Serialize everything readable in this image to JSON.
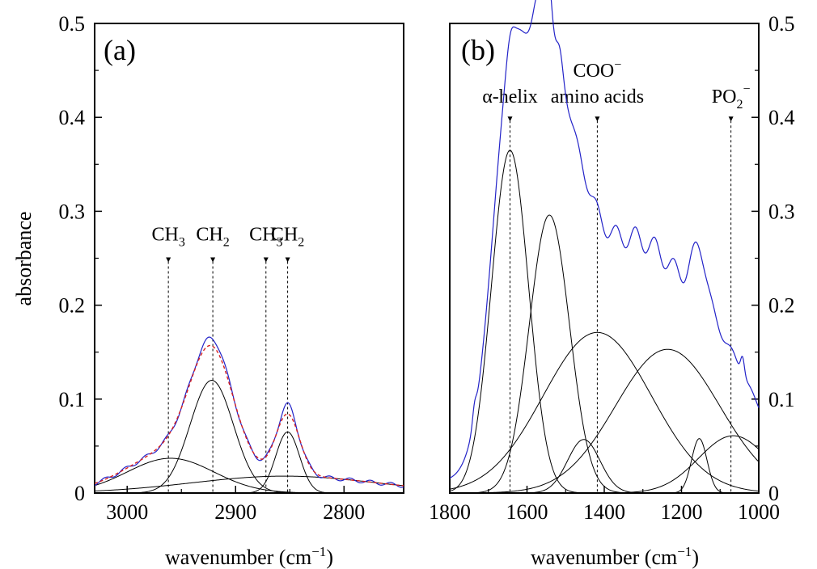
{
  "chart_data": [
    {
      "panel": "(a)",
      "type": "line",
      "xlabel": "wavenumber (cm",
      "xlabel_sup": "−1",
      "xlabel_end": ")",
      "ylabel": "absorbance",
      "xlim": [
        3030,
        2745
      ],
      "ylim": [
        0,
        0.5
      ],
      "xticks": [
        3000,
        2900,
        2800
      ],
      "yticks": [
        0,
        0.1,
        0.2,
        0.3,
        0.4,
        0.5
      ],
      "ytick_labels": [
        "0",
        "0.1",
        "0.2",
        "0.3",
        "0.4",
        "0.5"
      ],
      "annotations": [
        {
          "base": "CH",
          "sub": "3",
          "x": 2962
        },
        {
          "base": "CH",
          "sub": "2",
          "x": 2921
        },
        {
          "base": "CH",
          "sub": "3",
          "x": 2872
        },
        {
          "base": "CH",
          "sub": "2",
          "x": 2852
        }
      ],
      "annotation_y": 0.25,
      "bands": [
        {
          "center": 2960,
          "height": 0.037,
          "width": 40
        },
        {
          "center": 2922,
          "height": 0.12,
          "width": 20
        },
        {
          "center": 2852,
          "height": 0.065,
          "width": 11
        },
        {
          "center": 2855,
          "height": 0.018,
          "width": 85
        }
      ],
      "series": [
        {
          "key": "measured",
          "color": "#2323c8",
          "style": "solid"
        },
        {
          "key": "fit",
          "color": "#d62020",
          "style": "dashed"
        },
        {
          "key": "components",
          "color": "#000000",
          "style": "solid"
        }
      ]
    },
    {
      "panel": "(b)",
      "type": "line",
      "xlabel": "wavenumber (cm",
      "xlabel_sup": "−1",
      "xlabel_end": ")",
      "xlim": [
        1800,
        1000
      ],
      "ylim": [
        0,
        0.5
      ],
      "xticks": [
        1800,
        1600,
        1400,
        1200,
        1000
      ],
      "yticks": [
        0,
        0.1,
        0.2,
        0.3,
        0.4,
        0.5
      ],
      "ytick_labels": [
        "0",
        "0.1",
        "0.2",
        "0.3",
        "0.4",
        "0.5"
      ],
      "annotations": [
        {
          "lines": [
            "α-helix"
          ],
          "x": 1644
        },
        {
          "lines": [
            "COO",
            "amino acids"
          ],
          "sup": "−",
          "x": 1418
        },
        {
          "base": "PO",
          "sub": "2",
          "sup": "−",
          "x": 1072
        }
      ],
      "annotation_y": 0.4,
      "bands": [
        {
          "center": 1644,
          "height": 0.365,
          "width": 48
        },
        {
          "center": 1542,
          "height": 0.296,
          "width": 52
        },
        {
          "center": 1453,
          "height": 0.057,
          "width": 42
        },
        {
          "center": 1418,
          "height": 0.171,
          "width": 140
        },
        {
          "center": 1236,
          "height": 0.153,
          "width": 135
        },
        {
          "center": 1154,
          "height": 0.058,
          "width": 20
        },
        {
          "center": 1066,
          "height": 0.061,
          "width": 90
        }
      ],
      "series": [
        {
          "key": "measured",
          "color": "#2323c8",
          "style": "solid"
        },
        {
          "key": "components",
          "color": "#000000",
          "style": "solid"
        }
      ]
    }
  ]
}
